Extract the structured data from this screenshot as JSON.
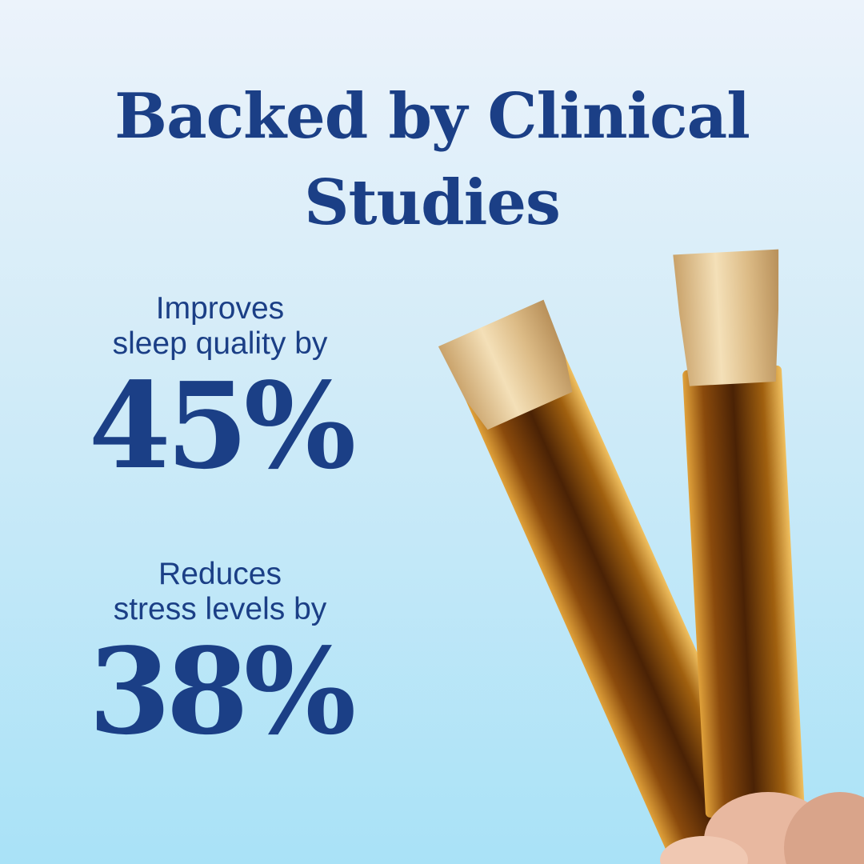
{
  "title": {
    "line1": "Backed by Clinical",
    "line2": "Studies"
  },
  "stats": [
    {
      "label_line1": "Improves",
      "label_line2": "sleep quality by",
      "value": "45%"
    },
    {
      "label_line1": "Reduces",
      "label_line2": "stress levels by",
      "value": "38%"
    }
  ],
  "colors": {
    "text": "#1b3f86",
    "background_top": "#ecf3fb",
    "background_bottom": "#a9e2f7"
  },
  "image": {
    "subject": "hand-holding-two-liquid-stick-packs"
  }
}
